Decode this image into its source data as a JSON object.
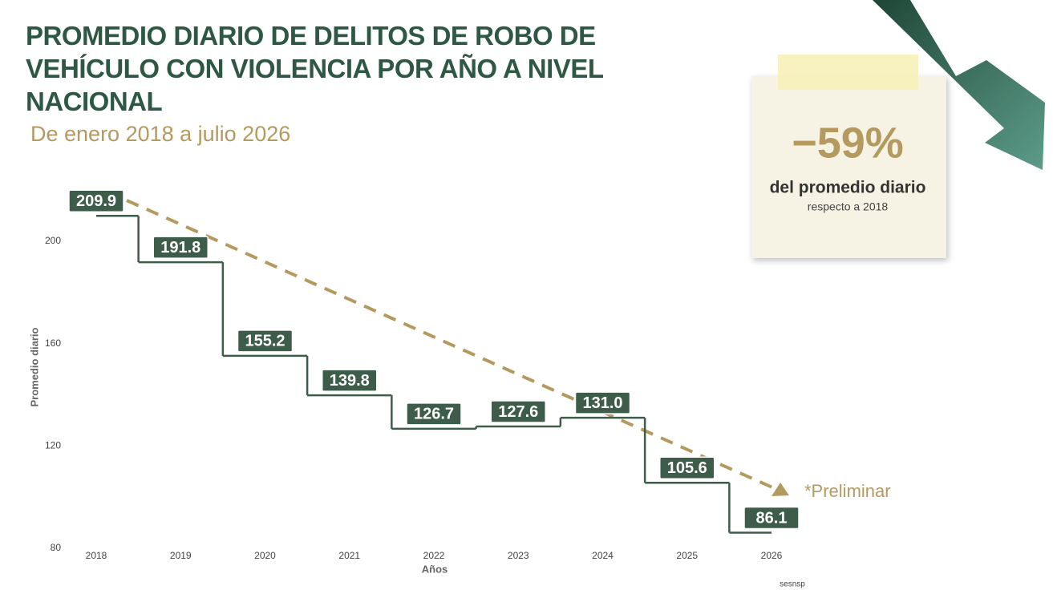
{
  "chart_data": {
    "type": "step",
    "title": "PROMEDIO DIARIO DE DELITOS DE ROBO DE VEHÍCULO CON VIOLENCIA POR AÑO A NIVEL NACIONAL",
    "subtitle": "De enero 2018 a julio 2026",
    "categories": [
      "2018",
      "2019",
      "2020",
      "2021",
      "2022",
      "2023",
      "2024",
      "2025",
      "2026"
    ],
    "values": [
      209.9,
      191.8,
      155.2,
      139.8,
      126.7,
      127.6,
      131.0,
      105.6,
      86.1
    ],
    "value_labels": [
      "209.9",
      "191.8",
      "155.2",
      "139.8",
      "126.7",
      "127.6",
      "131.0",
      "105.6",
      "86.1"
    ],
    "color": "#3d5c49",
    "ylim": [
      80,
      215
    ],
    "yticks": [
      80,
      120,
      160,
      200
    ],
    "y_label": "Promedio diario",
    "x_label": "Años",
    "annotation": "*Preliminar",
    "source": "sesnsp"
  },
  "callout": {
    "value": "−59%",
    "text": "del promedio diario",
    "subtext": "respecto a 2018"
  }
}
